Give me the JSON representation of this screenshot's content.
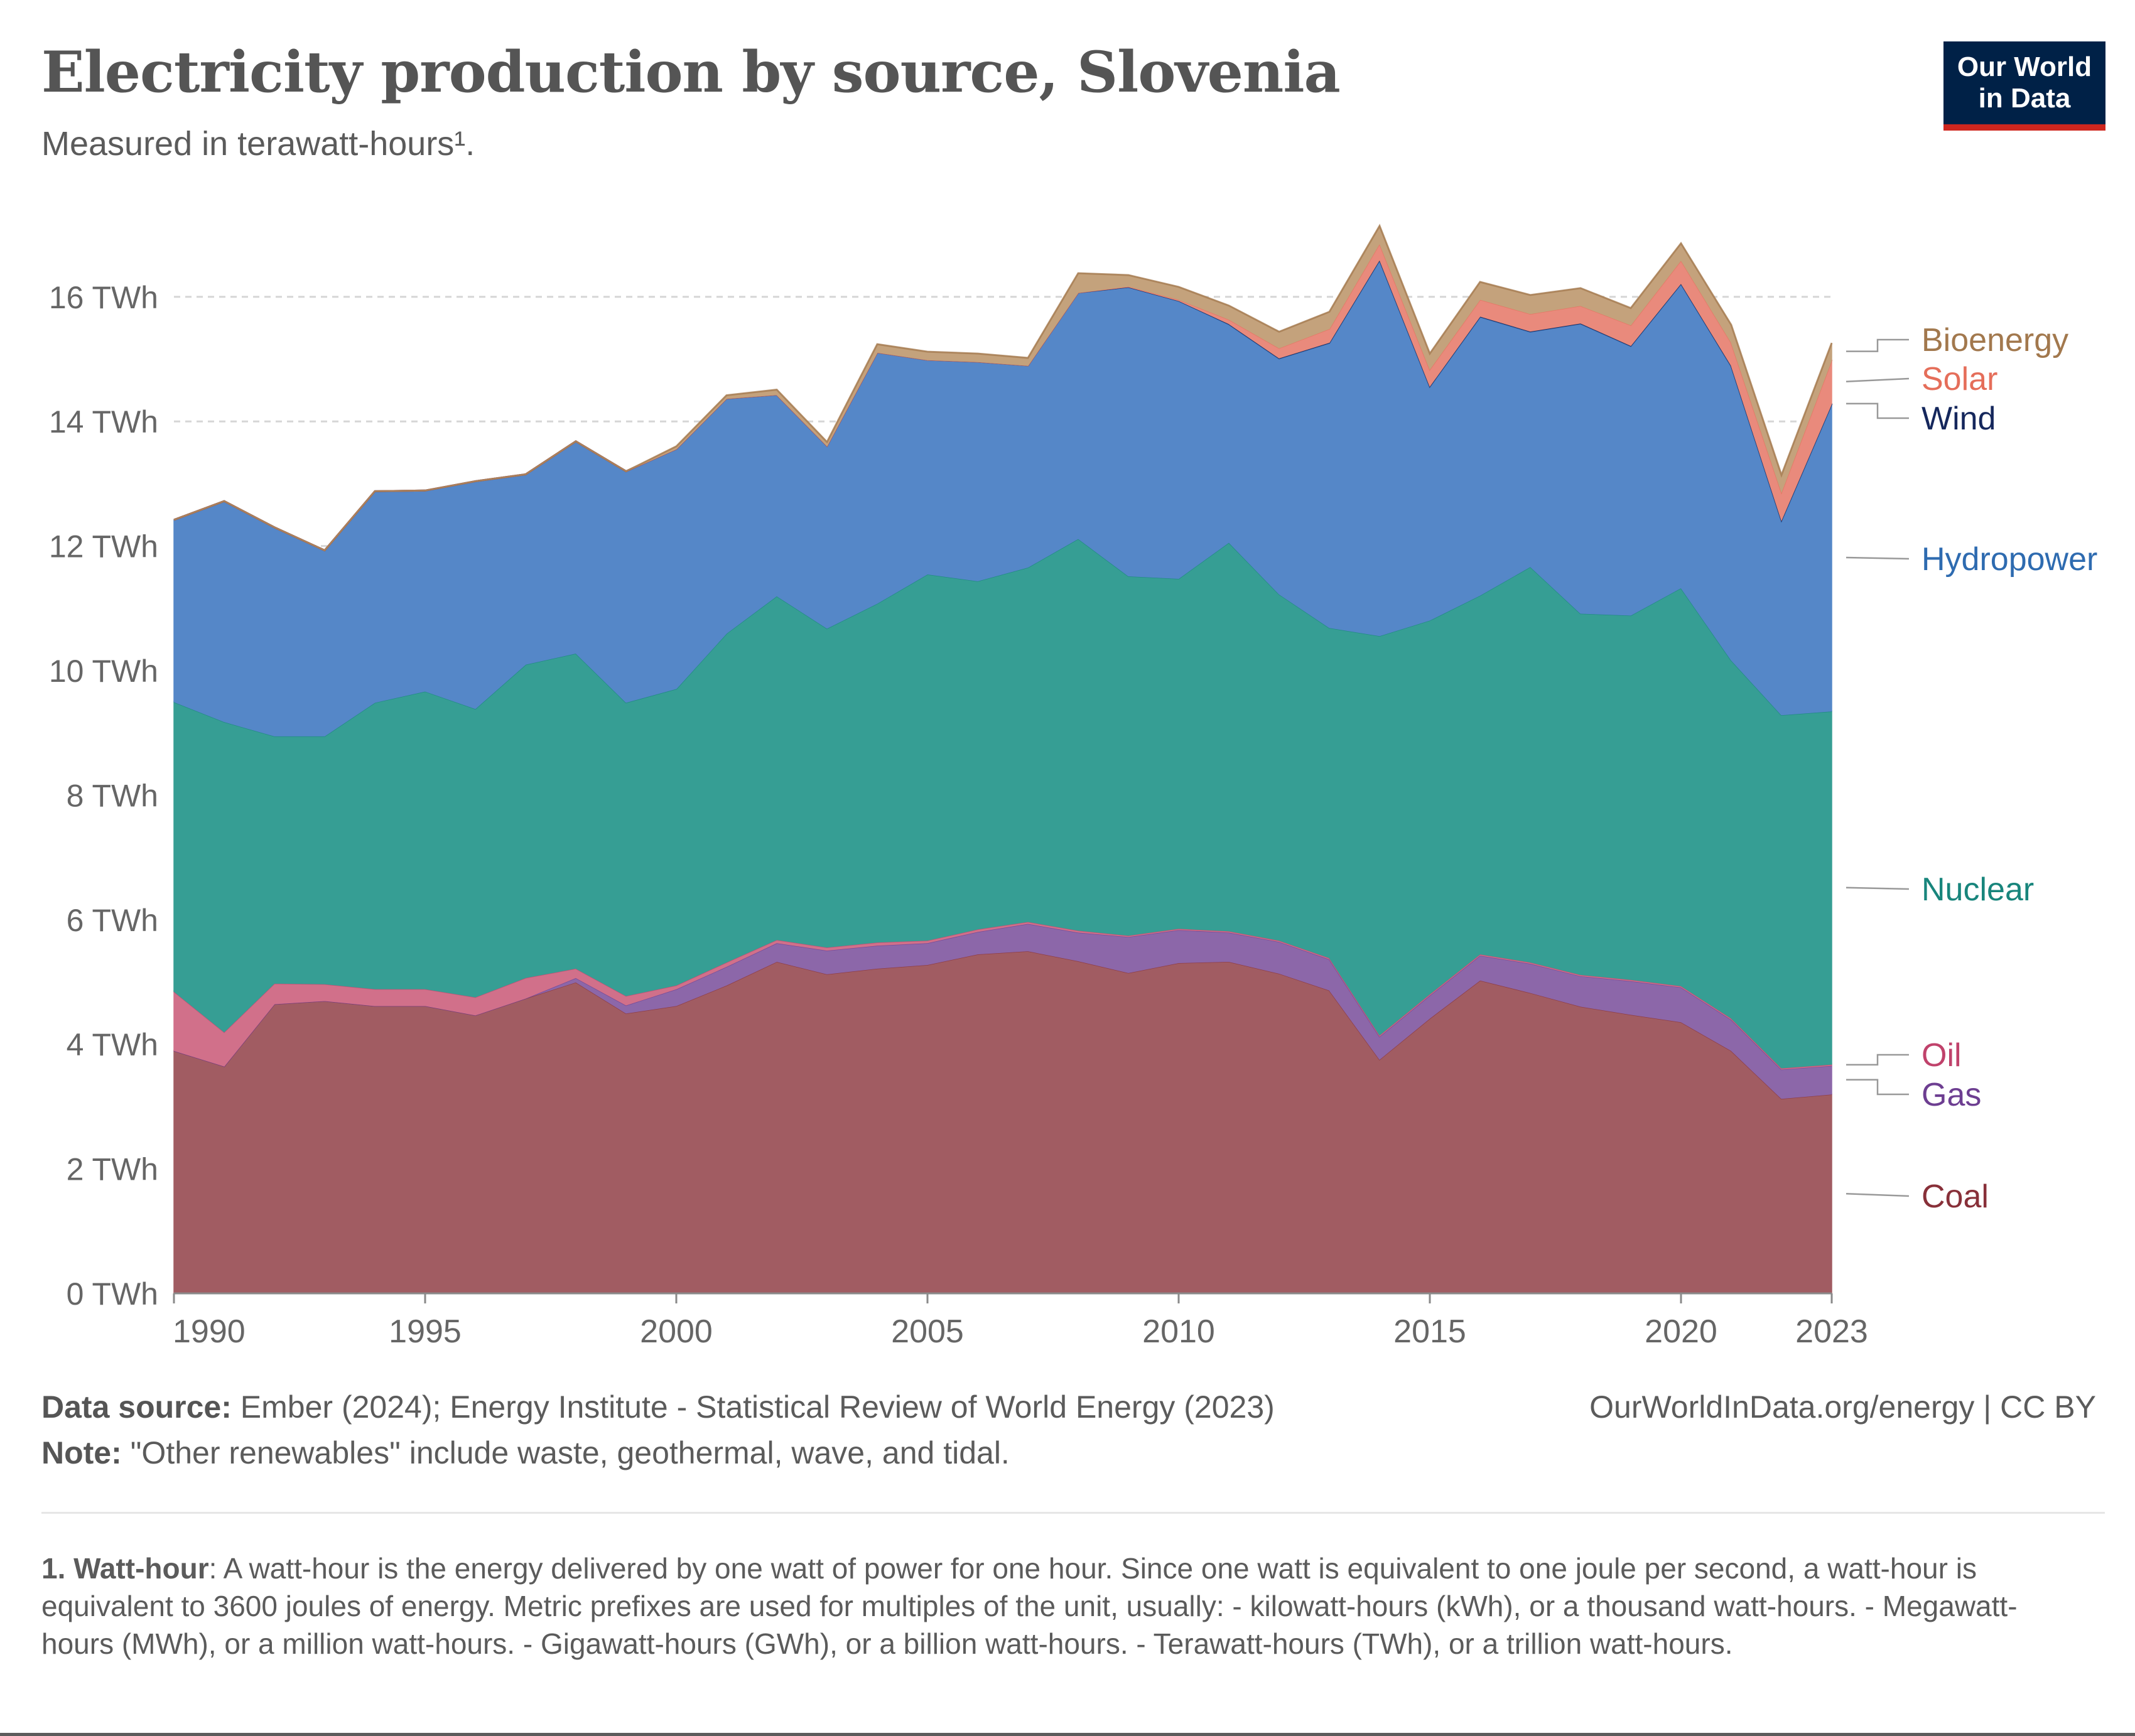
{
  "header": {
    "title": "Electricity production by source, Slovenia",
    "subtitle": "Measured in terawatt-hours¹.",
    "logo_line1": "Our World",
    "logo_line2": "in Data"
  },
  "footer": {
    "source_label": "Data source:",
    "source_text": "Ember (2024); Energy Institute - Statistical Review of World Energy (2023)",
    "note_label": "Note:",
    "note_text": "\"Other renewables\" include waste, geothermal, wave, and tidal.",
    "credit": "OurWorldInData.org/energy | CC BY",
    "footnote_label": "1. Watt-hour",
    "footnote_text": ": A watt-hour is the energy delivered by one watt of power for one hour. Since one watt is equivalent to one joule per second, a watt-hour is equivalent to 3600 joules of energy. Metric prefixes are used for multiples of the unit, usually: - kilowatt-hours (kWh), or a thousand watt-hours. - Megawatt-hours (MWh), or a million watt-hours. - Gigawatt-hours (GWh), or a billion watt-hours. - Terawatt-hours (TWh), or a trillion watt-hours."
  },
  "chart_data": {
    "type": "area",
    "stacked": true,
    "grid": "horizontal dashed",
    "ylim": [
      0,
      17
    ],
    "y_ticks": [
      0,
      2,
      4,
      6,
      8,
      10,
      12,
      14,
      16
    ],
    "y_tick_labels": [
      "0 TWh",
      "2 TWh",
      "4 TWh",
      "6 TWh",
      "8 TWh",
      "10 TWh",
      "12 TWh",
      "14 TWh",
      "16 TWh"
    ],
    "x_ticks": [
      1990,
      1995,
      2000,
      2005,
      2010,
      2015,
      2020,
      2023
    ],
    "x_tick_labels": [
      "1990",
      "1995",
      "2000",
      "2005",
      "2010",
      "2015",
      "2020",
      "2023"
    ],
    "x": [
      1990,
      1991,
      1992,
      1993,
      1994,
      1995,
      1996,
      1997,
      1998,
      1999,
      2000,
      2001,
      2002,
      2003,
      2004,
      2005,
      2006,
      2007,
      2008,
      2009,
      2010,
      2011,
      2012,
      2013,
      2014,
      2015,
      2016,
      2017,
      2018,
      2019,
      2020,
      2021,
      2022,
      2023
    ],
    "legend_position": "right (inline labels)",
    "series": [
      {
        "name": "Coal",
        "color": "#a15c62",
        "label_color": "#883039",
        "values": [
          3.9,
          3.65,
          4.65,
          4.7,
          4.62,
          4.62,
          4.47,
          4.74,
          5.0,
          4.5,
          4.62,
          4.95,
          5.33,
          5.13,
          5.22,
          5.28,
          5.45,
          5.5,
          5.34,
          5.15,
          5.31,
          5.33,
          5.14,
          4.87,
          3.76,
          4.42,
          5.03,
          4.83,
          4.61,
          4.48,
          4.36,
          3.9,
          3.13,
          3.2
        ]
      },
      {
        "name": "Gas",
        "color": "#8c67a9",
        "label_color": "#6d3e91",
        "values": [
          0,
          0,
          0,
          0,
          0,
          0,
          0,
          0,
          0.07,
          0.13,
          0.27,
          0.3,
          0.3,
          0.38,
          0.37,
          0.35,
          0.36,
          0.44,
          0.46,
          0.58,
          0.53,
          0.47,
          0.51,
          0.5,
          0.37,
          0.37,
          0.4,
          0.47,
          0.49,
          0.54,
          0.56,
          0.5,
          0.47,
          0.46
        ]
      },
      {
        "name": "Oil",
        "color": "#d1708a",
        "label_color": "#c0426b",
        "values": [
          0.95,
          0.55,
          0.33,
          0.27,
          0.27,
          0.27,
          0.29,
          0.33,
          0.15,
          0.15,
          0.06,
          0.07,
          0.05,
          0.05,
          0.05,
          0.04,
          0.04,
          0.03,
          0.03,
          0.02,
          0.02,
          0.02,
          0.02,
          0.02,
          0.02,
          0.02,
          0.02,
          0.02,
          0.02,
          0.02,
          0.02,
          0.02,
          0.02,
          0.02
        ]
      },
      {
        "name": "Nuclear",
        "color": "#369e94",
        "label_color": "#18857c",
        "values": [
          4.65,
          4.98,
          3.97,
          3.98,
          4.6,
          4.78,
          4.63,
          5.03,
          5.06,
          4.71,
          4.76,
          5.28,
          5.52,
          5.12,
          5.44,
          5.88,
          5.59,
          5.69,
          6.29,
          5.77,
          5.62,
          6.24,
          5.56,
          5.3,
          6.41,
          6.0,
          5.76,
          6.35,
          5.8,
          5.85,
          6.39,
          5.75,
          5.67,
          5.67
        ]
      },
      {
        "name": "Hydropower",
        "color": "#5587c8",
        "label_color": "#2e6bb0",
        "values": [
          2.92,
          3.54,
          3.35,
          2.98,
          3.39,
          3.22,
          3.65,
          3.05,
          3.4,
          3.71,
          3.85,
          3.77,
          3.23,
          2.93,
          4.03,
          3.44,
          3.52,
          3.24,
          3.95,
          4.64,
          4.46,
          3.5,
          3.78,
          4.57,
          6.03,
          3.75,
          4.47,
          3.77,
          4.65,
          4.32,
          4.88,
          4.72,
          3.12,
          4.93
        ]
      },
      {
        "name": "Wind",
        "color": "#2f3f72",
        "label_color": "#15275c",
        "values": [
          0,
          0,
          0,
          0,
          0,
          0,
          0,
          0,
          0,
          0,
          0,
          0,
          0,
          0,
          0,
          0,
          0,
          0,
          0,
          0,
          0,
          0.01,
          0.01,
          0.01,
          0.01,
          0.01,
          0.01,
          0.01,
          0.01,
          0.01,
          0.01,
          0.01,
          0.01,
          0.01
        ]
      },
      {
        "name": "Solar",
        "color": "#e98a7c",
        "label_color": "#e56e5a",
        "values": [
          0,
          0,
          0,
          0,
          0,
          0,
          0,
          0,
          0,
          0,
          0,
          0,
          0,
          0,
          0,
          0,
          0,
          0,
          0,
          0.01,
          0.02,
          0.07,
          0.16,
          0.22,
          0.26,
          0.27,
          0.27,
          0.28,
          0.28,
          0.33,
          0.37,
          0.37,
          0.45,
          0.7
        ]
      },
      {
        "name": "Bioenergy",
        "color": "#c4a27c",
        "label_color": "#a2784d",
        "values": [
          0,
          0,
          0,
          0,
          0,
          0,
          0,
          0,
          0,
          0,
          0.04,
          0.05,
          0.08,
          0.06,
          0.13,
          0.13,
          0.13,
          0.12,
          0.31,
          0.18,
          0.2,
          0.22,
          0.26,
          0.27,
          0.28,
          0.25,
          0.28,
          0.3,
          0.28,
          0.27,
          0.27,
          0.28,
          0.27,
          0.27
        ]
      }
    ]
  }
}
